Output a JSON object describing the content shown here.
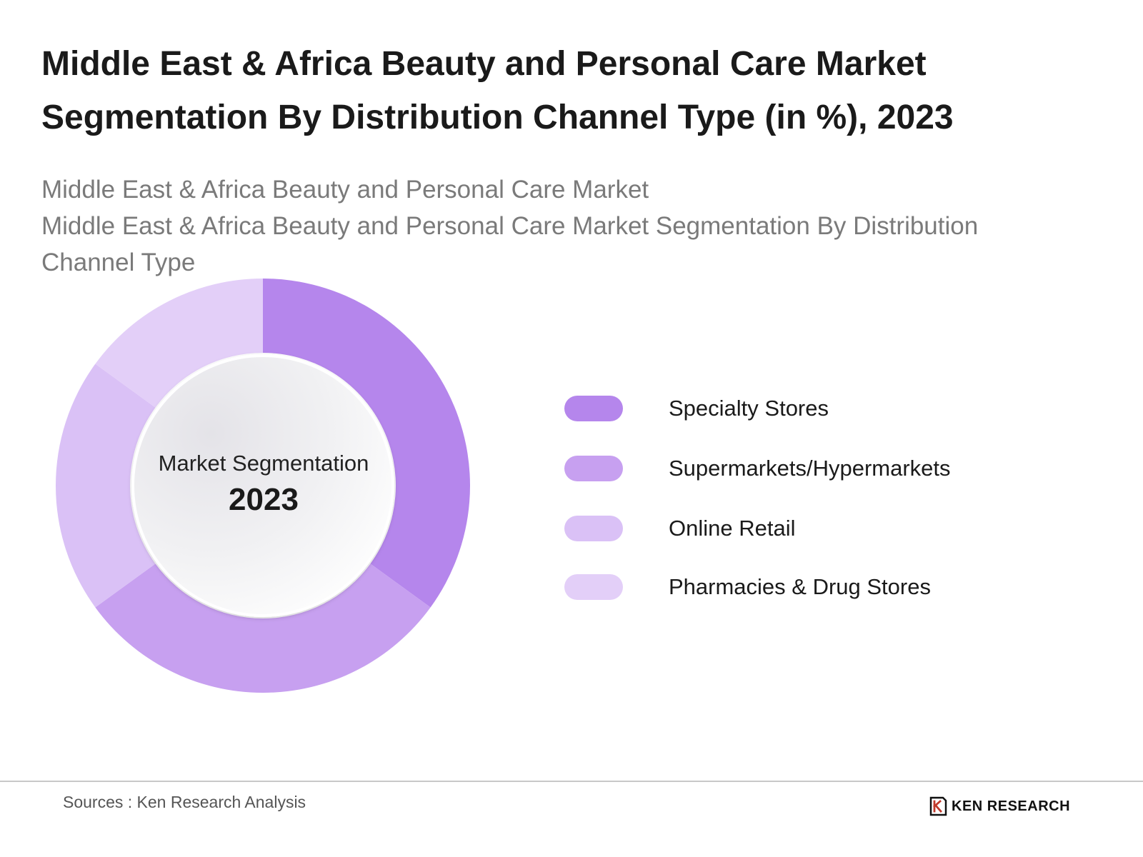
{
  "title_line1": "Middle East & Africa Beauty and Personal Care Market",
  "title_line2": "Segmentation By Distribution Channel Type (in %), 2023",
  "subtitle_line1": "Middle East & Africa Beauty and Personal Care Market",
  "subtitle_line2": "Middle East & Africa Beauty and Personal Care Market Segmentation By Distribution",
  "subtitle_line3": "Channel Type",
  "center": {
    "label": "Market Segmentation",
    "year": "2023"
  },
  "chart_data": {
    "type": "pie",
    "categories": [
      "Specialty Stores",
      "Supermarkets/Hypermarkets",
      "Online Retail",
      "Pharmacies & Drug Stores"
    ],
    "values": [
      35,
      30,
      20,
      15
    ],
    "colors": [
      "#b586ec",
      "#c7a0f0",
      "#dac1f6",
      "#e3cff8"
    ],
    "legend_position": "right"
  },
  "footer": {
    "source": "Sources : Ken Research Analysis",
    "logo_text": "KEN RESEARCH"
  }
}
